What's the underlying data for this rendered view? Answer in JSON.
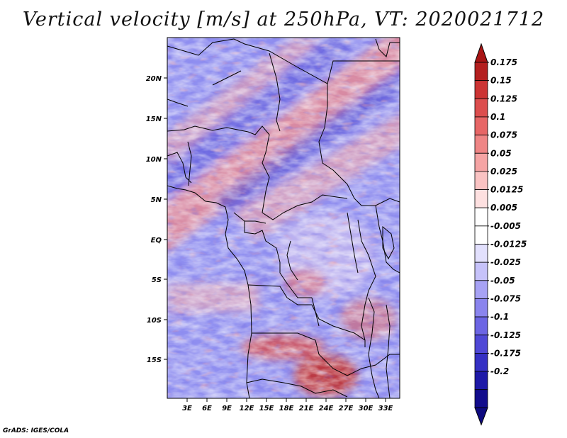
{
  "title": "Vertical velocity [m/s] at 250hPa, VT: 2020021712",
  "credit": "GrADS: IGES/COLA",
  "map": {
    "variable": "Vertical velocity",
    "units": "m/s",
    "level": "250hPa",
    "valid_time": "2020021712",
    "lon_range": [
      0,
      35
    ],
    "lat_range": [
      -20,
      25
    ],
    "lat_labels": [
      "20N",
      "15N",
      "10N",
      "5N",
      "EQ",
      "5S",
      "10S",
      "15S"
    ],
    "lon_labels": [
      "3E",
      "6E",
      "9E",
      "12E",
      "15E",
      "18E",
      "21E",
      "24E",
      "27E",
      "30E",
      "33E"
    ]
  },
  "colorbar": {
    "labels": [
      "0.175",
      "0.15",
      "0.125",
      "0.1",
      "0.075",
      "0.05",
      "0.025",
      "0.0125",
      "0.005",
      "-0.005",
      "-0.0125",
      "-0.025",
      "-0.05",
      "-0.075",
      "-0.1",
      "-0.125",
      "-0.175",
      "-0.2"
    ],
    "colors": [
      "#b41f1f",
      "#cc3434",
      "#dc4e4e",
      "#e76666",
      "#ef8585",
      "#f5a4a4",
      "#fac3c3",
      "#fde0e0",
      "#ffffff",
      "#ffffff",
      "#e2e0fd",
      "#c6c2fa",
      "#a7a2f5",
      "#8a84ee",
      "#6c65e4",
      "#4f48d6",
      "#3530c4",
      "#1e19a8",
      "#120c8c"
    ],
    "top_color": "#a81515",
    "bottom_color": "#0e0a80"
  }
}
